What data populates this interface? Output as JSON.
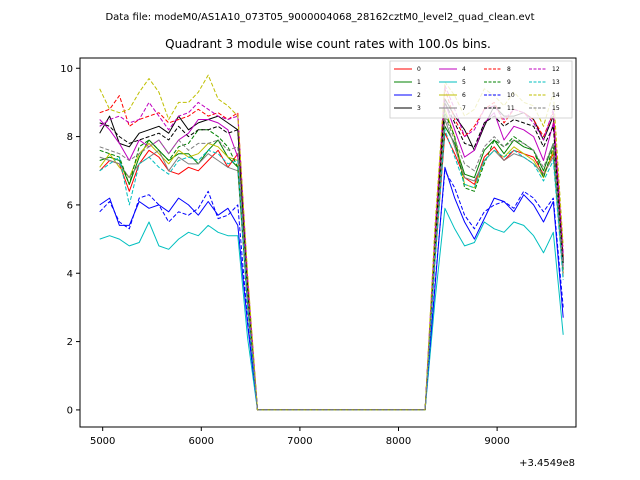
{
  "suptitle": "Data file: modeM0/AS1A10_073T05_9000004068_28162cztM0_level2_quad_clean.evt",
  "chart_data": {
    "type": "line",
    "title": "Quadrant 3 module wise count rates with 100.0s bins.",
    "xlabel": "",
    "ylabel": "",
    "x_offset_label": "+3.4549e8",
    "xlim": [
      4770,
      9800
    ],
    "ylim": [
      -0.5,
      10.3
    ],
    "x_ticks": [
      5000,
      6000,
      7000,
      8000,
      9000
    ],
    "x_tick_labels": [
      "5000",
      "6000",
      "7000",
      "8000",
      "9000"
    ],
    "y_ticks": [
      0,
      2,
      4,
      6,
      8,
      10
    ],
    "y_tick_labels": [
      "0",
      "2",
      "4",
      "6",
      "8",
      "10"
    ],
    "grid": false,
    "legend_placement": "upper-right",
    "legend_columns": 4,
    "x": [
      4970,
      5070,
      5170,
      5270,
      5370,
      5470,
      5570,
      5670,
      5770,
      5870,
      5970,
      6070,
      6170,
      6270,
      6370,
      6470,
      6570,
      8270,
      8370,
      8470,
      8570,
      8670,
      8770,
      8870,
      8970,
      9070,
      9170,
      9270,
      9370,
      9470,
      9570,
      9670
    ],
    "series": [
      {
        "name": "0",
        "color": "#ff0000",
        "dash": false,
        "values": [
          7.0,
          7.3,
          7.2,
          6.4,
          7.2,
          7.6,
          7.4,
          7.0,
          6.9,
          7.1,
          7.0,
          7.3,
          7.6,
          7.1,
          7.5,
          3.0,
          0.0,
          0.0,
          4.4,
          8.1,
          7.5,
          6.8,
          6.6,
          7.4,
          7.7,
          7.3,
          7.6,
          7.5,
          7.4,
          6.9,
          7.5,
          4.0
        ]
      },
      {
        "name": "1",
        "color": "#008000",
        "dash": false,
        "values": [
          7.3,
          7.4,
          7.3,
          6.6,
          7.4,
          7.9,
          7.6,
          7.3,
          7.5,
          7.5,
          7.2,
          7.6,
          7.9,
          7.4,
          7.1,
          3.1,
          0.0,
          0.0,
          4.6,
          8.3,
          7.8,
          6.9,
          6.8,
          7.6,
          7.9,
          7.5,
          7.9,
          7.7,
          7.6,
          7.0,
          7.8,
          4.1
        ]
      },
      {
        "name": "2",
        "color": "#0000ff",
        "dash": false,
        "values": [
          6.0,
          6.2,
          5.4,
          5.4,
          6.1,
          5.9,
          6.0,
          5.8,
          6.2,
          6.0,
          5.7,
          6.1,
          5.7,
          5.9,
          5.4,
          2.5,
          0.0,
          0.0,
          3.6,
          7.1,
          6.2,
          5.5,
          5.0,
          5.6,
          6.2,
          6.1,
          5.8,
          6.3,
          6.0,
          5.5,
          6.1,
          2.7
        ]
      },
      {
        "name": "3",
        "color": "#000000",
        "dash": false,
        "values": [
          8.1,
          8.6,
          7.8,
          7.7,
          8.1,
          8.2,
          8.3,
          8.1,
          8.6,
          8.2,
          8.4,
          8.5,
          8.6,
          8.4,
          8.2,
          3.7,
          0.0,
          0.0,
          5.0,
          9.1,
          8.6,
          8.2,
          7.6,
          8.3,
          8.9,
          8.6,
          8.6,
          8.7,
          8.5,
          7.9,
          8.6,
          4.4
        ]
      },
      {
        "name": "4",
        "color": "#bf00bf",
        "dash": false,
        "values": [
          8.5,
          8.2,
          7.8,
          7.3,
          7.9,
          7.7,
          7.9,
          7.5,
          7.9,
          8.1,
          8.5,
          8.5,
          8.4,
          8.2,
          7.4,
          3.5,
          0.0,
          0.0,
          4.8,
          9.0,
          8.2,
          7.4,
          7.6,
          8.4,
          8.7,
          7.9,
          8.3,
          8.2,
          8.0,
          7.3,
          8.4,
          4.2
        ]
      },
      {
        "name": "5",
        "color": "#00bfbf",
        "dash": false,
        "values": [
          5.0,
          5.1,
          5.0,
          4.8,
          4.9,
          5.5,
          4.8,
          4.7,
          5.0,
          5.2,
          5.1,
          5.4,
          5.2,
          5.1,
          5.1,
          2.1,
          0.0,
          0.0,
          3.2,
          5.9,
          5.3,
          4.8,
          4.9,
          5.5,
          5.3,
          5.2,
          5.5,
          5.4,
          5.1,
          4.6,
          5.2,
          2.2
        ]
      },
      {
        "name": "6",
        "color": "#bfbf00",
        "dash": false,
        "values": [
          7.1,
          7.5,
          7.1,
          6.8,
          7.5,
          7.8,
          7.5,
          7.2,
          7.6,
          7.4,
          7.5,
          7.8,
          7.7,
          7.4,
          7.3,
          3.2,
          0.0,
          0.0,
          4.5,
          8.8,
          8.0,
          6.6,
          6.5,
          7.3,
          7.6,
          7.4,
          7.7,
          7.5,
          7.3,
          6.8,
          7.6,
          4.0
        ]
      },
      {
        "name": "7",
        "color": "#7f7f7f",
        "dash": false,
        "values": [
          7.4,
          7.3,
          7.2,
          6.8,
          7.2,
          7.4,
          7.6,
          7.0,
          7.4,
          7.2,
          7.2,
          7.5,
          7.3,
          7.1,
          7.0,
          3.1,
          0.0,
          0.0,
          4.5,
          8.5,
          7.7,
          6.8,
          6.7,
          7.3,
          7.6,
          7.3,
          7.5,
          7.4,
          7.2,
          6.9,
          7.4,
          3.9
        ]
      },
      {
        "name": "8",
        "color": "#ff0000",
        "dash": true,
        "values": [
          8.7,
          8.8,
          9.2,
          8.3,
          8.5,
          8.6,
          8.7,
          8.4,
          8.5,
          8.6,
          8.8,
          8.6,
          8.7,
          8.5,
          8.7,
          3.8,
          0.0,
          0.0,
          5.1,
          9.4,
          8.5,
          8.0,
          8.3,
          8.8,
          9.0,
          8.4,
          8.8,
          8.7,
          8.5,
          8.0,
          8.7,
          4.5
        ]
      },
      {
        "name": "9",
        "color": "#008000",
        "dash": true,
        "values": [
          7.6,
          7.5,
          7.4,
          6.6,
          7.7,
          7.9,
          7.6,
          7.3,
          7.7,
          7.8,
          8.2,
          8.2,
          8.0,
          7.7,
          7.1,
          3.2,
          0.0,
          0.0,
          4.6,
          8.7,
          8.0,
          6.5,
          6.4,
          7.2,
          7.9,
          7.7,
          8.0,
          7.8,
          7.6,
          6.8,
          7.7,
          4.1
        ]
      },
      {
        "name": "10",
        "color": "#0000ff",
        "dash": true,
        "values": [
          5.8,
          6.1,
          5.5,
          5.3,
          6.2,
          6.3,
          6.0,
          5.5,
          5.8,
          5.7,
          5.9,
          6.4,
          5.6,
          5.7,
          6.0,
          2.6,
          0.0,
          0.0,
          3.7,
          7.0,
          6.5,
          5.7,
          5.3,
          5.8,
          6.0,
          6.1,
          5.9,
          6.4,
          6.2,
          5.8,
          6.2,
          3.0
        ]
      },
      {
        "name": "11",
        "color": "#000000",
        "dash": true,
        "values": [
          8.4,
          8.3,
          8.0,
          7.8,
          7.9,
          8.0,
          8.1,
          7.9,
          8.3,
          8.0,
          8.2,
          8.2,
          8.3,
          8.1,
          8.2,
          3.6,
          0.0,
          0.0,
          4.9,
          9.0,
          8.4,
          7.8,
          7.7,
          8.4,
          8.6,
          8.3,
          8.5,
          8.4,
          8.3,
          7.7,
          8.3,
          4.3
        ]
      },
      {
        "name": "12",
        "color": "#bf00bf",
        "dash": true,
        "values": [
          8.3,
          8.5,
          8.6,
          8.4,
          8.5,
          9.0,
          8.6,
          8.2,
          8.6,
          8.7,
          9.0,
          8.8,
          8.6,
          8.5,
          8.6,
          3.9,
          0.0,
          0.0,
          5.2,
          9.5,
          8.8,
          8.0,
          8.2,
          8.8,
          8.9,
          8.5,
          8.8,
          8.7,
          8.4,
          7.9,
          8.8,
          4.6
        ]
      },
      {
        "name": "13",
        "color": "#00bfbf",
        "dash": true,
        "values": [
          7.0,
          7.2,
          7.4,
          6.0,
          7.2,
          7.4,
          7.1,
          6.9,
          7.3,
          7.4,
          7.3,
          7.6,
          7.5,
          7.2,
          7.3,
          3.0,
          0.0,
          0.0,
          4.3,
          8.2,
          7.4,
          6.6,
          6.5,
          7.3,
          7.6,
          7.4,
          7.6,
          7.4,
          7.2,
          6.7,
          7.3,
          3.8
        ]
      },
      {
        "name": "14",
        "color": "#bfbf00",
        "dash": true,
        "values": [
          9.4,
          8.8,
          8.7,
          8.8,
          9.3,
          9.7,
          9.3,
          8.5,
          9.0,
          9.0,
          9.3,
          9.8,
          9.1,
          8.9,
          8.6,
          4.0,
          0.0,
          0.0,
          5.4,
          9.6,
          9.2,
          8.6,
          8.8,
          9.4,
          9.2,
          8.9,
          9.3,
          9.0,
          8.9,
          8.3,
          9.3,
          4.8
        ]
      },
      {
        "name": "15",
        "color": "#7f7f7f",
        "dash": true,
        "values": [
          7.7,
          7.6,
          7.5,
          7.3,
          7.5,
          7.7,
          7.9,
          7.5,
          7.9,
          7.6,
          7.8,
          7.8,
          7.9,
          7.6,
          7.7,
          3.3,
          0.0,
          0.0,
          4.7,
          8.6,
          7.9,
          7.2,
          7.0,
          7.7,
          8.0,
          7.7,
          7.9,
          7.8,
          7.6,
          7.1,
          7.8,
          4.1
        ]
      }
    ]
  }
}
